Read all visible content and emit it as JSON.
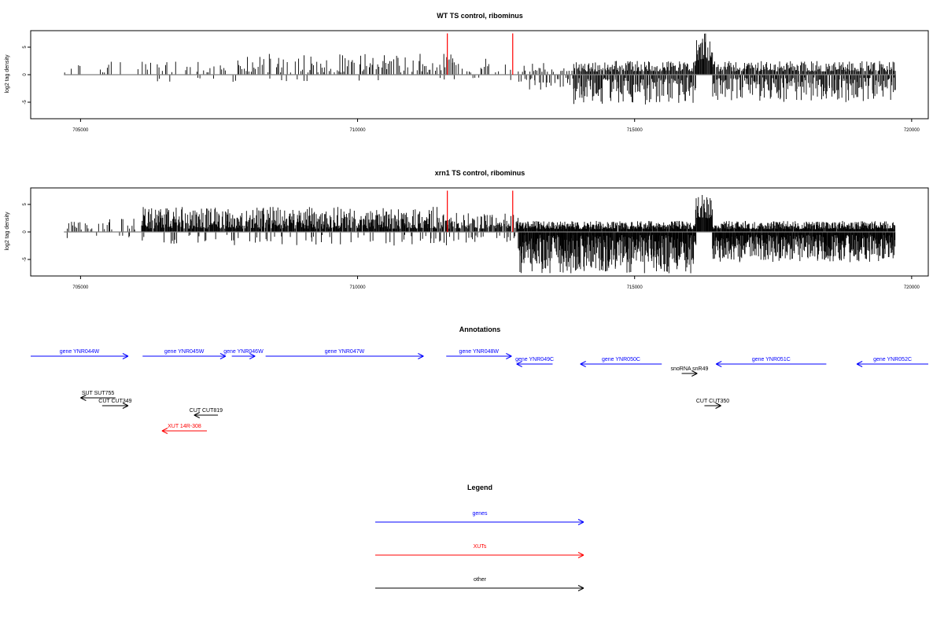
{
  "chart_data": [
    {
      "type": "bar",
      "title": "WT TS control, ribominus",
      "ylabel": "log2 tag density",
      "xlim": [
        704100,
        720300
      ],
      "ylim": [
        -8,
        8
      ],
      "xticks": [
        705000,
        710000,
        715000,
        720000
      ],
      "yticks": [
        -5,
        0,
        5
      ],
      "baseline": {
        "x": [
          704700,
          719700
        ],
        "y": 0
      },
      "highlights": [
        {
          "x": 711620,
          "y": [
            0,
            7.5
          ],
          "color": "#ff0000"
        },
        {
          "x": 712800,
          "y": [
            0,
            7.5
          ],
          "color": "#ff0000"
        }
      ],
      "signal": {
        "color": "#000000",
        "segments": [
          {
            "x": [
              704700,
              706100
            ],
            "step": 40,
            "density": 0.33,
            "min": 0.4,
            "max": 2.5,
            "neg": 0.0,
            "negmax": 0
          },
          {
            "x": [
              706100,
              707800
            ],
            "step": 30,
            "density": 0.4,
            "min": 0.4,
            "max": 2.6,
            "neg": 0.12,
            "negmax": 1.8
          },
          {
            "x": [
              707800,
              711700
            ],
            "step": 25,
            "density": 0.72,
            "min": 0.4,
            "max": 3.8,
            "neg": 0.05,
            "negmax": 1.2
          },
          {
            "x": [
              711700,
              712900
            ],
            "step": 30,
            "density": 0.42,
            "min": 0.4,
            "max": 3.0,
            "neg": 0.05,
            "negmax": 1.0
          },
          {
            "x": [
              712900,
              713900
            ],
            "step": 30,
            "density": 0.55,
            "min": 0.5,
            "max": 2.2,
            "neg": 0.75,
            "negmax": 2.8
          },
          {
            "x": [
              713900,
              716100
            ],
            "step": 15,
            "density": 0.95,
            "min": 0.6,
            "max": 2.5,
            "neg": 1.0,
            "negmax": 5.5
          },
          {
            "x": [
              716100,
              716400
            ],
            "step": 12,
            "density": 1.0,
            "min": 2.5,
            "max": 7.5,
            "neg": 0.0,
            "negmax": 0
          },
          {
            "x": [
              716400,
              719700
            ],
            "step": 15,
            "density": 0.95,
            "min": 0.6,
            "max": 2.5,
            "neg": 0.9,
            "negmax": 5.0
          }
        ]
      }
    },
    {
      "type": "bar",
      "title": "xrn1 TS control, ribominus",
      "ylabel": "log2 tag density",
      "xlim": [
        704100,
        720300
      ],
      "ylim": [
        -8,
        8
      ],
      "xticks": [
        705000,
        710000,
        715000,
        720000
      ],
      "yticks": [
        -5,
        0,
        5
      ],
      "baseline": {
        "x": [
          704700,
          719700
        ],
        "y": 0
      },
      "highlights": [
        {
          "x": 711620,
          "y": [
            0,
            7.5
          ],
          "color": "#ff0000"
        },
        {
          "x": 712800,
          "y": [
            0,
            7.5
          ],
          "color": "#ff0000"
        }
      ],
      "signal": {
        "color": "#000000",
        "segments": [
          {
            "x": [
              704700,
              706100
            ],
            "step": 25,
            "density": 0.6,
            "min": 0.4,
            "max": 2.6,
            "neg": 0.1,
            "negmax": 1.2
          },
          {
            "x": [
              706100,
              711600
            ],
            "step": 10,
            "density": 0.9,
            "min": 0.6,
            "max": 4.6,
            "neg": 0.15,
            "negmax": 2.5
          },
          {
            "x": [
              711600,
              712900
            ],
            "step": 12,
            "density": 0.85,
            "min": 0.6,
            "max": 3.5,
            "neg": 0.15,
            "negmax": 2.0
          },
          {
            "x": [
              712900,
              716100
            ],
            "step": 8,
            "density": 0.95,
            "min": 0.5,
            "max": 2.0,
            "neg": 1.0,
            "negmax": 7.5
          },
          {
            "x": [
              716100,
              716400
            ],
            "step": 10,
            "density": 1.0,
            "min": 2.5,
            "max": 7.5,
            "neg": 0.0,
            "negmax": 0
          },
          {
            "x": [
              716400,
              719700
            ],
            "step": 8,
            "density": 0.95,
            "min": 0.5,
            "max": 2.0,
            "neg": 1.0,
            "negmax": 5.5
          }
        ]
      }
    }
  ],
  "annotations": {
    "title": "Annotations",
    "items": [
      {
        "label": "gene YNR044W",
        "start": 704100,
        "end": 705860,
        "strand": "+",
        "color": "#0000ff",
        "row": 0
      },
      {
        "label": "gene YNR045W",
        "start": 706120,
        "end": 707620,
        "strand": "+",
        "color": "#0000ff",
        "row": 0
      },
      {
        "label": "gene YNR046W",
        "start": 707730,
        "end": 708150,
        "strand": "+",
        "color": "#0000ff",
        "row": 0
      },
      {
        "label": "gene YNR047W",
        "start": 708340,
        "end": 711190,
        "strand": "+",
        "color": "#0000ff",
        "row": 0
      },
      {
        "label": "gene YNR048W",
        "start": 711600,
        "end": 712780,
        "strand": "+",
        "color": "#0000ff",
        "row": 0
      },
      {
        "label": "gene YNR049C",
        "start": 712870,
        "end": 713520,
        "strand": "-",
        "color": "#0000ff",
        "row": 1
      },
      {
        "label": "gene YNR050C",
        "start": 714020,
        "end": 715490,
        "strand": "-",
        "color": "#0000ff",
        "row": 1
      },
      {
        "label": "snoRNA snR49",
        "start": 715850,
        "end": 716130,
        "strand": "+",
        "color": "#000000",
        "row": 2
      },
      {
        "label": "gene YNR051C",
        "start": 716470,
        "end": 718460,
        "strand": "-",
        "color": "#0000ff",
        "row": 1
      },
      {
        "label": "gene YNR052C",
        "start": 719010,
        "end": 720300,
        "strand": "-",
        "color": "#0000ff",
        "row": 1
      },
      {
        "label": "SUT SUT755",
        "start": 705000,
        "end": 705630,
        "strand": "-",
        "color": "#000000",
        "row": 4
      },
      {
        "label": "CUT CUT349",
        "start": 705390,
        "end": 705860,
        "strand": "+",
        "color": "#000000",
        "row": 5
      },
      {
        "label": "CUT CUT819",
        "start": 707050,
        "end": 707480,
        "strand": "-",
        "color": "#000000",
        "row": 6
      },
      {
        "label": "XUT 14R-308",
        "start": 706470,
        "end": 707280,
        "strand": "-",
        "color": "#ff0000",
        "row": 7
      },
      {
        "label": "CUT CUT350",
        "start": 716260,
        "end": 716560,
        "strand": "+",
        "color": "#000000",
        "row": 5
      }
    ]
  },
  "legend": {
    "title": "Legend",
    "entries": [
      {
        "label": "genes",
        "color": "#0000ff"
      },
      {
        "label": "XUTs",
        "color": "#ff0000"
      },
      {
        "label": "other",
        "color": "#000000"
      }
    ]
  }
}
